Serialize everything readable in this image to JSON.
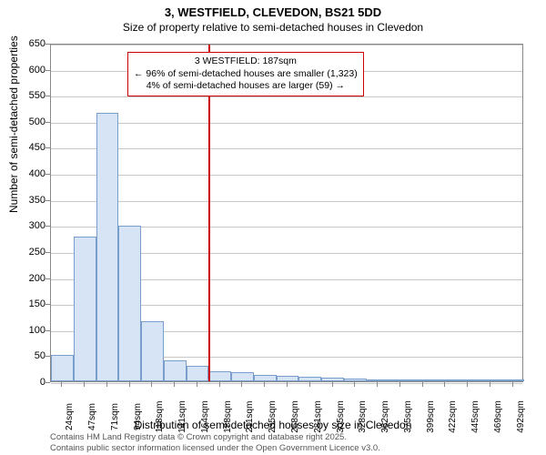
{
  "title": "3, WESTFIELD, CLEVEDON, BS21 5DD",
  "subtitle": "Size of property relative to semi-detached houses in Clevedon",
  "ylabel": "Number of semi-detached properties",
  "xlabel": "Distribution of semi-detached houses by size in Clevedon",
  "chart": {
    "type": "histogram",
    "ylim": [
      0,
      650
    ],
    "ytick_step": 50,
    "yticks": [
      0,
      50,
      100,
      150,
      200,
      250,
      300,
      350,
      400,
      450,
      500,
      550,
      600,
      650
    ],
    "xticks": [
      "24sqm",
      "47sqm",
      "71sqm",
      "94sqm",
      "118sqm",
      "141sqm",
      "164sqm",
      "188sqm",
      "211sqm",
      "235sqm",
      "258sqm",
      "281sqm",
      "305sqm",
      "328sqm",
      "352sqm",
      "375sqm",
      "399sqm",
      "422sqm",
      "445sqm",
      "469sqm",
      "492sqm"
    ],
    "bars": [
      50,
      278,
      515,
      298,
      115,
      40,
      30,
      20,
      18,
      12,
      10,
      8,
      7,
      6,
      4,
      2,
      1,
      1,
      1,
      1,
      1
    ],
    "bar_fill": "#d6e4f5",
    "bar_stroke": "#7a9ecb",
    "grid_color": "#c8c8c8",
    "background_color": "#ffffff",
    "axis_color": "#888888",
    "marker_index": 7,
    "marker_color": "#cc0000",
    "annotation_border": "#cc0000",
    "annotation": {
      "line1": "3 WESTFIELD: 187sqm",
      "line2": "← 96% of semi-detached houses are smaller (1,323)",
      "line3": "4% of semi-detached houses are larger (59) →"
    }
  },
  "footer": {
    "line1": "Contains HM Land Registry data © Crown copyright and database right 2025.",
    "line2": "Contains public sector information licensed under the Open Government Licence v3.0."
  }
}
